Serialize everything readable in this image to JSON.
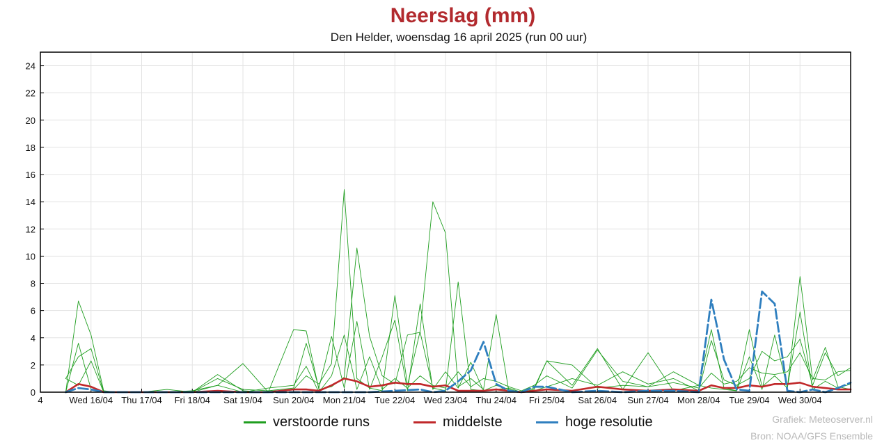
{
  "header": {
    "title": "Neerslag (mm)",
    "subtitle": "Den Helder, woensdag 16 april 2025 (run 00 uur)"
  },
  "legend": {
    "items": [
      {
        "label": "verstoorde runs",
        "color": "#1f9e1f"
      },
      {
        "label": "middelste",
        "color": "#c0282a"
      },
      {
        "label": "hoge resolutie",
        "color": "#2f7fbf"
      }
    ]
  },
  "credits": {
    "line1": "Grafiek: Meteoserver.nl",
    "line2": "Bron: NOAA/GFS Ensemble"
  },
  "chart_data": {
    "type": "line",
    "title": "Neerslag (mm)",
    "subtitle": "Den Helder, woensdag 16 april 2025 (run 00 uur)",
    "x_unit": "days",
    "xlim": [
      0,
      16
    ],
    "ylim": [
      0,
      25
    ],
    "yticks": [
      0,
      2,
      4,
      6,
      8,
      10,
      12,
      14,
      16,
      18,
      20,
      22,
      24
    ],
    "x_tick_labels": [
      {
        "x": 0,
        "label": "4"
      },
      {
        "x": 1,
        "label": "Wed 16/04"
      },
      {
        "x": 2,
        "label": "Thu 17/04"
      },
      {
        "x": 3,
        "label": "Fri 18/04"
      },
      {
        "x": 4,
        "label": "Sat 19/04"
      },
      {
        "x": 5,
        "label": "Sun 20/04"
      },
      {
        "x": 6,
        "label": "Mon 21/04"
      },
      {
        "x": 7,
        "label": "Tue 22/04"
      },
      {
        "x": 8,
        "label": "Wed 23/04"
      },
      {
        "x": 9,
        "label": "Thu 24/04"
      },
      {
        "x": 10,
        "label": "Fri 25/04"
      },
      {
        "x": 11,
        "label": "Sat 26/04"
      },
      {
        "x": 12,
        "label": "Sun 27/04"
      },
      {
        "x": 13,
        "label": "Mon 28/04"
      },
      {
        "x": 14,
        "label": "Tue 29/04"
      },
      {
        "x": 15,
        "label": "Wed 30/04"
      }
    ],
    "grid": true,
    "legend_position": "bottom",
    "series": [
      {
        "name": "verstoorde runs",
        "color": "#1f9e1f",
        "style": "thin",
        "x": [
          0.5,
          0.75,
          1.0,
          1.25,
          1.5,
          2.0,
          2.5,
          3.0,
          3.5,
          4.0,
          4.5,
          5.0,
          5.25,
          5.5,
          5.75,
          6.0,
          6.25,
          6.5,
          6.75,
          7.0,
          7.25,
          7.5,
          7.75,
          8.0,
          8.25,
          8.5,
          8.75,
          9.0,
          9.25,
          9.5,
          9.75,
          10.0,
          10.5,
          11.0,
          11.5,
          12.0,
          12.5,
          13.0,
          13.25,
          13.5,
          13.75,
          14.0,
          14.25,
          14.5,
          14.75,
          15.0,
          15.25,
          15.5,
          15.75,
          16.0
        ],
        "values": [
          0.0,
          6.7,
          4.2,
          0.1,
          0.0,
          0.0,
          0.2,
          0.0,
          1.3,
          0.1,
          0.0,
          0.2,
          1.2,
          0.6,
          2.1,
          14.9,
          1.0,
          0.3,
          0.1,
          7.1,
          0.5,
          4.5,
          14.0,
          11.7,
          0.4,
          1.0,
          0.2,
          5.7,
          0.1,
          0.0,
          0.3,
          2.3,
          0.5,
          3.2,
          0.2,
          2.9,
          0.1,
          0.5,
          0.3,
          0.2,
          0.1,
          4.6,
          0.4,
          1.2,
          0.3,
          8.5,
          0.9,
          3.3,
          0.4,
          0.2
        ]
      },
      {
        "name": "",
        "color": "#1f9e1f",
        "style": "thin",
        "x": [
          0.5,
          0.75,
          1.0,
          1.25,
          1.5,
          2.0,
          2.5,
          3.0,
          3.5,
          4.0,
          4.5,
          5.0,
          5.25,
          5.5,
          5.75,
          6.0,
          6.25,
          6.5,
          6.75,
          7.0,
          7.25,
          7.5,
          7.75,
          8.0,
          8.25,
          8.5,
          8.75,
          9.0,
          9.25,
          9.5,
          9.75,
          10.0,
          10.5,
          11.0,
          11.5,
          12.0,
          12.5,
          13.0,
          13.25,
          13.5,
          13.75,
          14.0,
          14.25,
          14.5,
          14.75,
          15.0,
          15.25,
          15.5,
          15.75,
          16.0
        ],
        "values": [
          0.0,
          3.6,
          0.2,
          0.0,
          0.0,
          0.0,
          0.0,
          0.1,
          0.5,
          2.1,
          0.0,
          4.6,
          4.5,
          0.2,
          0.4,
          1.1,
          10.6,
          4.1,
          1.2,
          0.6,
          4.2,
          4.4,
          0.3,
          0.1,
          8.1,
          0.2,
          0.1,
          0.2,
          0.3,
          0.0,
          0.1,
          0.4,
          1.0,
          0.5,
          1.5,
          0.6,
          1.0,
          0.1,
          3.8,
          0.9,
          0.5,
          1.0,
          3.0,
          2.3,
          2.6,
          3.9,
          0.5,
          2.9,
          1.2,
          1.8
        ]
      },
      {
        "name": "",
        "color": "#1f9e1f",
        "style": "thin",
        "x": [
          0.5,
          0.75,
          1.0,
          1.25,
          1.5,
          2.0,
          2.5,
          3.0,
          3.5,
          4.0,
          4.5,
          5.0,
          5.25,
          5.5,
          5.75,
          6.0,
          6.25,
          6.5,
          6.75,
          7.0,
          7.25,
          7.5,
          7.75,
          8.0,
          8.25,
          8.5,
          8.75,
          9.0,
          9.25,
          9.5,
          9.75,
          10.0,
          10.5,
          11.0,
          11.5,
          12.0,
          12.5,
          13.0,
          13.25,
          13.5,
          13.75,
          14.0,
          14.25,
          14.5,
          14.75,
          15.0,
          15.25,
          15.5,
          15.75,
          16.0
        ],
        "values": [
          1.0,
          2.6,
          3.2,
          0.0,
          0.0,
          0.0,
          0.0,
          0.0,
          1.0,
          0.2,
          0.1,
          0.3,
          3.6,
          0.3,
          4.1,
          0.3,
          5.2,
          0.2,
          2.6,
          5.3,
          0.1,
          6.5,
          0.2,
          1.5,
          0.3,
          2.2,
          0.1,
          0.5,
          0.2,
          0.0,
          0.2,
          2.3,
          2.0,
          0.3,
          0.5,
          0.4,
          1.5,
          0.5,
          4.6,
          0.3,
          0.1,
          2.6,
          0.2,
          4.2,
          0.3,
          5.9,
          0.2,
          0.8,
          0.3,
          0.6
        ]
      },
      {
        "name": "",
        "color": "#1f9e1f",
        "style": "thin",
        "x": [
          0.5,
          0.75,
          1.0,
          1.25,
          1.5,
          2.0,
          2.5,
          3.0,
          3.5,
          4.0,
          4.5,
          5.0,
          5.25,
          5.5,
          5.75,
          6.0,
          6.25,
          6.5,
          6.75,
          7.0,
          7.25,
          7.5,
          7.75,
          8.0,
          8.25,
          8.5,
          8.75,
          9.0,
          9.25,
          9.5,
          9.75,
          10.0,
          10.5,
          11.0,
          11.5,
          12.0,
          12.5,
          13.0,
          13.25,
          13.5,
          13.75,
          14.0,
          14.25,
          14.5,
          14.75,
          15.0,
          15.25,
          15.5,
          15.75,
          16.0
        ],
        "values": [
          1.0,
          0.5,
          2.3,
          0.0,
          0.0,
          0.0,
          0.0,
          0.0,
          0.5,
          0.0,
          0.3,
          0.5,
          1.9,
          0.0,
          1.2,
          4.2,
          0.2,
          2.6,
          0.2,
          1.0,
          0.3,
          1.2,
          0.5,
          0.3,
          1.5,
          0.4,
          1.0,
          0.8,
          0.4,
          0.1,
          0.5,
          1.2,
          0.3,
          3.1,
          0.8,
          0.4,
          0.7,
          0.3,
          1.4,
          0.6,
          0.8,
          1.8,
          1.4,
          1.3,
          1.5,
          2.9,
          1.0,
          0.9,
          1.5,
          1.6
        ]
      },
      {
        "name": "middelste",
        "color": "#c0282a",
        "style": "thick",
        "x": [
          0.5,
          0.75,
          1.0,
          1.25,
          1.5,
          2.0,
          2.5,
          3.0,
          3.5,
          4.0,
          4.5,
          5.0,
          5.25,
          5.5,
          5.75,
          6.0,
          6.25,
          6.5,
          6.75,
          7.0,
          7.25,
          7.5,
          7.75,
          8.0,
          8.25,
          8.5,
          8.75,
          9.0,
          9.25,
          9.5,
          9.75,
          10.0,
          10.5,
          11.0,
          11.5,
          12.0,
          12.5,
          13.0,
          13.25,
          13.5,
          13.75,
          14.0,
          14.25,
          14.5,
          14.75,
          15.0,
          15.25,
          15.5,
          15.75,
          16.0
        ],
        "values": [
          0.0,
          0.6,
          0.4,
          0.0,
          0.0,
          0.0,
          0.0,
          0.0,
          0.1,
          0.0,
          0.0,
          0.2,
          0.2,
          0.1,
          0.5,
          1.0,
          0.8,
          0.4,
          0.5,
          0.7,
          0.6,
          0.6,
          0.4,
          0.5,
          0.1,
          0.1,
          0.1,
          0.2,
          0.1,
          0.0,
          0.1,
          0.2,
          0.1,
          0.4,
          0.2,
          0.1,
          0.2,
          0.1,
          0.5,
          0.3,
          0.3,
          0.5,
          0.4,
          0.6,
          0.6,
          0.7,
          0.4,
          0.3,
          0.2,
          0.2
        ]
      },
      {
        "name": "hoge resolutie",
        "color": "#2f7fbf",
        "style": "dashed",
        "x": [
          0.5,
          0.75,
          1.0,
          1.25,
          1.5,
          2.0,
          3.0,
          4.0,
          5.0,
          6.0,
          6.5,
          7.0,
          7.5,
          7.75,
          8.0,
          8.25,
          8.5,
          8.75,
          9.0,
          9.25,
          9.5,
          9.75,
          10.0,
          10.5,
          11.0,
          11.5,
          12.0,
          12.5,
          13.0,
          13.25,
          13.5,
          13.75,
          14.0,
          14.25,
          14.5,
          14.75,
          15.0,
          15.25,
          15.5,
          15.75,
          16.0
        ],
        "values": [
          0.0,
          0.3,
          0.2,
          0.0,
          0.0,
          0.0,
          0.0,
          0.0,
          0.0,
          0.0,
          0.0,
          0.1,
          0.2,
          0.0,
          0.1,
          0.8,
          1.6,
          3.7,
          0.6,
          0.1,
          0.0,
          0.4,
          0.4,
          0.0,
          0.1,
          0.0,
          0.1,
          0.1,
          0.0,
          6.8,
          2.4,
          0.2,
          0.1,
          7.4,
          6.5,
          0.1,
          0.0,
          0.2,
          0.0,
          0.3,
          0.7
        ]
      }
    ]
  }
}
